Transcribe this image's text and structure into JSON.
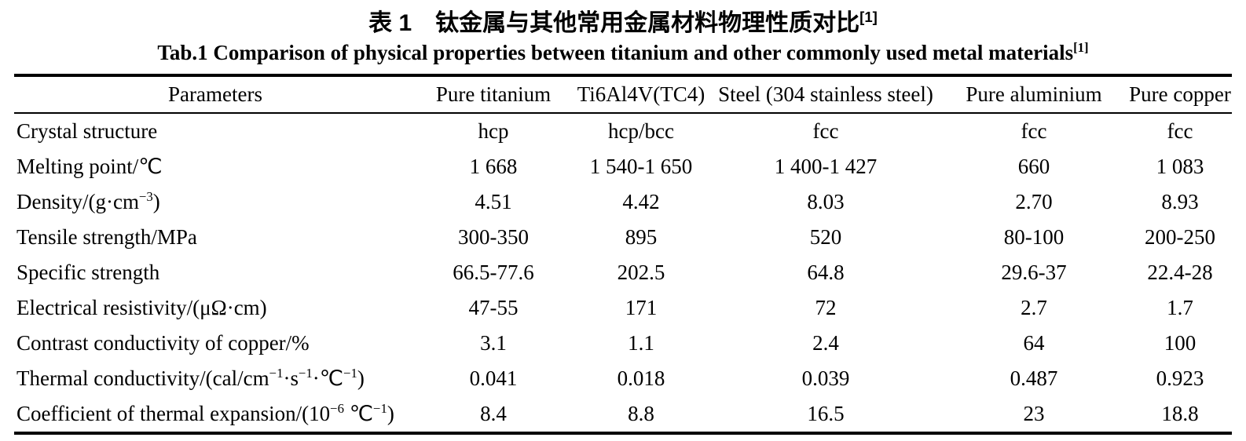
{
  "title_zh": "表 1　钛金属与其他常用金属材料物理性质对比^{[1]}",
  "title_en": "Tab.1 Comparison of physical properties between titanium and other commonly used metal materials^{[1]}",
  "table": {
    "columns": [
      "Parameters",
      "Pure titanium",
      "Ti6Al4V(TC4)",
      "Steel (304 stainless steel)",
      "Pure aluminium",
      "Pure copper"
    ],
    "rows": [
      {
        "label": "Crystal structure",
        "values": [
          "hcp",
          "hcp/bcc",
          "fcc",
          "fcc",
          "fcc"
        ]
      },
      {
        "label": "Melting point/℃",
        "values": [
          "1 668",
          "1 540-1 650",
          "1 400-1 427",
          "660",
          "1 083"
        ]
      },
      {
        "label": "Density/(g·cm^{−3})",
        "values": [
          "4.51",
          "4.42",
          "8.03",
          "2.70",
          "8.93"
        ]
      },
      {
        "label": "Tensile strength/MPa",
        "values": [
          "300-350",
          "895",
          "520",
          "80-100",
          "200-250"
        ]
      },
      {
        "label": "Specific strength",
        "values": [
          "66.5-77.6",
          "202.5",
          "64.8",
          "29.6-37",
          "22.4-28"
        ]
      },
      {
        "label": "Electrical resistivity/(μΩ·cm)",
        "values": [
          "47-55",
          "171",
          "72",
          "2.7",
          "1.7"
        ]
      },
      {
        "label": "Contrast conductivity of copper/%",
        "values": [
          "3.1",
          "1.1",
          "2.4",
          "64",
          "100"
        ]
      },
      {
        "label": "Thermal conductivity/(cal/cm^{−1}·s^{−1}·℃^{−1})",
        "values": [
          "0.041",
          "0.018",
          "0.039",
          "0.487",
          "0.923"
        ]
      },
      {
        "label": "Coefficient of thermal expansion/(10^{−6} ℃^{−1})",
        "values": [
          "8.4",
          "8.8",
          "16.5",
          "23",
          "18.8"
        ]
      }
    ]
  }
}
